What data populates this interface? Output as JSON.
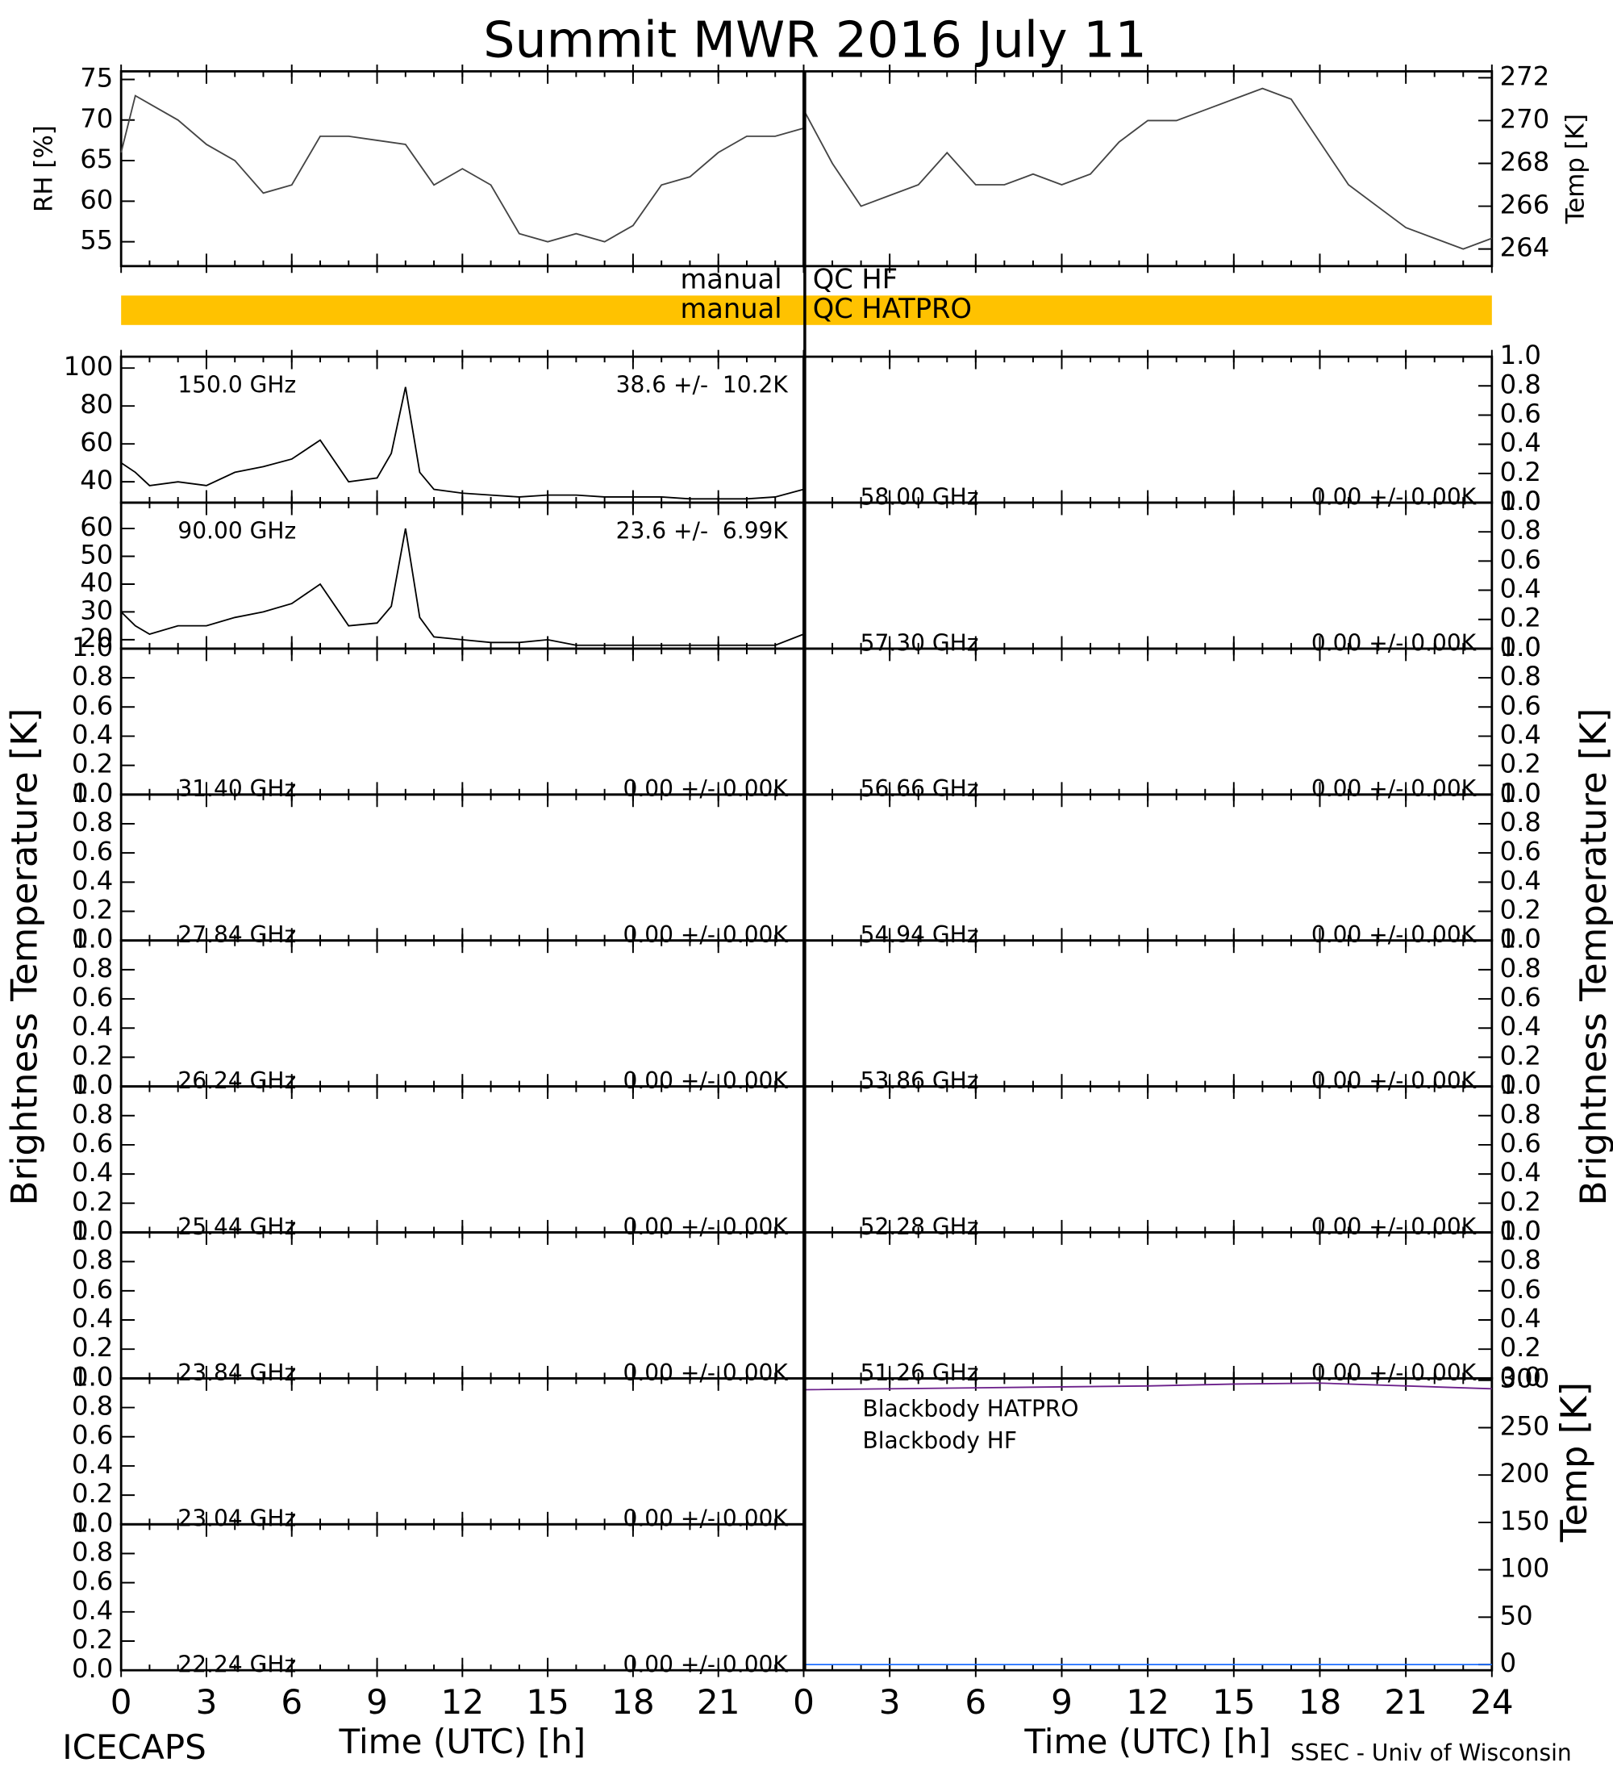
{
  "title": "Summit MWR 2016 July 11",
  "footer_left": "ICECAPS",
  "footer_right": "SSEC - Univ of Wisconsin",
  "ylabel_left": "Brightness Temperature [K]",
  "ylabel_right": "Brightness Temperature [K]",
  "qc": [
    {
      "left": "manual",
      "right": "QC HF"
    },
    {
      "left": "manual",
      "right": "QC HATPRO",
      "color": "#ffc200"
    }
  ],
  "chart_data": [
    {
      "type": "line",
      "ylabel": "RH [%]",
      "color": "#444444",
      "xlim": [
        0,
        24
      ],
      "xticks": [
        0,
        3,
        6,
        9,
        12,
        15,
        18,
        21
      ],
      "ylim": [
        52,
        76
      ],
      "yticks": [
        55,
        60,
        65,
        70,
        75
      ],
      "x": [
        0,
        0.5,
        1,
        2,
        3,
        4,
        5,
        6,
        7,
        8,
        9,
        10,
        11,
        12,
        13,
        14,
        15,
        16,
        17,
        18,
        19,
        20,
        21,
        22,
        23,
        24
      ],
      "values": [
        66,
        73,
        72,
        70,
        67,
        65,
        61,
        62,
        68,
        68,
        67.5,
        67,
        62,
        64,
        62,
        56,
        55,
        56,
        55,
        57,
        62,
        63,
        66,
        68,
        68,
        69
      ]
    },
    {
      "type": "line",
      "ylabel": "Temp [K]",
      "color": "#444444",
      "xlim": [
        0,
        24
      ],
      "xticks": [
        0,
        3,
        6,
        9,
        12,
        15,
        18,
        21,
        24
      ],
      "ylim": [
        263.2,
        272.3
      ],
      "yticks": [
        264,
        266,
        268,
        270,
        272
      ],
      "x": [
        0,
        1,
        2,
        3,
        4,
        5,
        6,
        7,
        8,
        9,
        10,
        11,
        12,
        13,
        14,
        15,
        16,
        17,
        18,
        19,
        20,
        21,
        22,
        23,
        24
      ],
      "values": [
        270.5,
        268,
        266,
        266.5,
        267,
        268.5,
        267,
        267,
        267.5,
        267,
        267.5,
        269,
        270,
        270,
        270.5,
        271,
        271.5,
        271,
        269,
        267,
        266,
        265,
        264.5,
        264,
        264.5
      ]
    },
    {
      "type": "line",
      "label": "150.0 GHz",
      "stats": "38.6 +/-  10.2K",
      "color": "#000000",
      "xlim": [
        0,
        24
      ],
      "xticks": [
        0,
        3,
        6,
        9,
        12,
        15,
        18,
        21
      ],
      "ylim": [
        29,
        106
      ],
      "yticks": [
        40,
        60,
        80,
        100
      ],
      "x": [
        0,
        0.5,
        1,
        2,
        3,
        4,
        5,
        6,
        7,
        8,
        9,
        9.5,
        10,
        10.5,
        11,
        12,
        13,
        14,
        15,
        16,
        17,
        18,
        19,
        20,
        21,
        22,
        23,
        24
      ],
      "values": [
        50,
        45,
        38,
        40,
        38,
        45,
        48,
        52,
        62,
        40,
        42,
        55,
        90,
        45,
        36,
        34,
        33,
        32,
        33,
        33,
        32,
        32,
        32,
        31,
        31,
        31,
        32,
        36
      ]
    },
    {
      "type": "line",
      "label": "90.00 GHz",
      "stats": "23.6 +/-  6.99K",
      "color": "#000000",
      "xlim": [
        0,
        24
      ],
      "xticks": [
        0,
        3,
        6,
        9,
        12,
        15,
        18,
        21
      ],
      "ylim": [
        16.8,
        69.3
      ],
      "yticks": [
        20,
        30,
        40,
        50,
        60
      ],
      "x": [
        0,
        0.5,
        1,
        2,
        3,
        4,
        5,
        6,
        7,
        8,
        9,
        9.5,
        10,
        10.5,
        11,
        12,
        13,
        14,
        15,
        16,
        17,
        18,
        19,
        20,
        21,
        22,
        23,
        24
      ],
      "values": [
        30,
        25,
        22,
        25,
        25,
        28,
        30,
        33,
        40,
        25,
        26,
        32,
        60,
        28,
        21,
        20,
        19,
        19,
        20,
        18,
        18,
        18,
        18,
        18,
        18,
        18,
        18,
        22
      ]
    },
    {
      "type": "line",
      "label": "31.40 GHz",
      "stats": "0.00 +/- 0.00K",
      "xlim": [
        0,
        24
      ],
      "xticks": [
        0,
        3,
        6,
        9,
        12,
        15,
        18,
        21
      ],
      "ylim": [
        0,
        1
      ],
      "yticks": [
        {
          "value": 0,
          "label": "0.0"
        },
        0.2,
        0.4,
        0.6,
        0.8,
        {
          "value": 1,
          "label": "1.0"
        }
      ]
    },
    {
      "type": "line",
      "label": "27.84 GHz",
      "stats": "0.00 +/- 0.00K",
      "xlim": [
        0,
        24
      ],
      "xticks": [
        0,
        3,
        6,
        9,
        12,
        15,
        18,
        21
      ],
      "ylim": [
        0,
        1
      ],
      "yticks": [
        {
          "value": 0,
          "label": "0.0"
        },
        0.2,
        0.4,
        0.6,
        0.8,
        {
          "value": 1,
          "label": "1.0"
        }
      ]
    },
    {
      "type": "line",
      "label": "26.24 GHz",
      "stats": "0.00 +/- 0.00K",
      "xlim": [
        0,
        24
      ],
      "xticks": [
        0,
        3,
        6,
        9,
        12,
        15,
        18,
        21
      ],
      "ylim": [
        0,
        1
      ],
      "yticks": [
        {
          "value": 0,
          "label": "0.0"
        },
        0.2,
        0.4,
        0.6,
        0.8,
        {
          "value": 1,
          "label": "1.0"
        }
      ]
    },
    {
      "type": "line",
      "label": "25.44 GHz",
      "stats": "0.00 +/- 0.00K",
      "xlim": [
        0,
        24
      ],
      "xticks": [
        0,
        3,
        6,
        9,
        12,
        15,
        18,
        21
      ],
      "ylim": [
        0,
        1
      ],
      "yticks": [
        {
          "value": 0,
          "label": "0.0"
        },
        0.2,
        0.4,
        0.6,
        0.8,
        {
          "value": 1,
          "label": "1.0"
        }
      ]
    },
    {
      "type": "line",
      "label": "23.84 GHz",
      "stats": "0.00 +/- 0.00K",
      "xlim": [
        0,
        24
      ],
      "xticks": [
        0,
        3,
        6,
        9,
        12,
        15,
        18,
        21
      ],
      "ylim": [
        0,
        1
      ],
      "yticks": [
        {
          "value": 0,
          "label": "0.0"
        },
        0.2,
        0.4,
        0.6,
        0.8,
        {
          "value": 1,
          "label": "1.0"
        }
      ]
    },
    {
      "type": "line",
      "label": "23.04 GHz",
      "stats": "0.00 +/- 0.00K",
      "xlim": [
        0,
        24
      ],
      "xticks": [
        0,
        3,
        6,
        9,
        12,
        15,
        18,
        21
      ],
      "ylim": [
        0,
        1
      ],
      "yticks": [
        {
          "value": 0,
          "label": "0.0"
        },
        0.2,
        0.4,
        0.6,
        0.8,
        {
          "value": 1,
          "label": "1.0"
        }
      ]
    },
    {
      "type": "line",
      "label": "22.24 GHz",
      "stats": "0.00 +/- 0.00K",
      "xlabel": "Time (UTC) [h]",
      "xlim": [
        0,
        24
      ],
      "xticks": [
        0,
        3,
        6,
        9,
        12,
        15,
        18,
        21
      ],
      "ylim": [
        0,
        1
      ],
      "yticks": [
        {
          "value": 0,
          "label": "0.0"
        },
        0.2,
        0.4,
        0.6,
        0.8,
        {
          "value": 1,
          "label": "1.0"
        }
      ]
    },
    {
      "type": "line",
      "label": "58.00 GHz",
      "stats": "0.00 +/- 0.00K",
      "xlim": [
        0,
        24
      ],
      "xticks": [
        0,
        3,
        6,
        9,
        12,
        15,
        18,
        21,
        24
      ],
      "ylim": [
        0,
        1
      ],
      "yticks": [
        {
          "value": 0,
          "label": "0.0"
        },
        0.2,
        0.4,
        0.6,
        0.8,
        {
          "value": 1,
          "label": "1.0"
        }
      ]
    },
    {
      "type": "line",
      "label": "57.30 GHz",
      "stats": "0.00 +/- 0.00K",
      "xlim": [
        0,
        24
      ],
      "xticks": [
        0,
        3,
        6,
        9,
        12,
        15,
        18,
        21,
        24
      ],
      "ylim": [
        0,
        1
      ],
      "yticks": [
        {
          "value": 0,
          "label": "0.0"
        },
        0.2,
        0.4,
        0.6,
        0.8,
        {
          "value": 1,
          "label": "1.0"
        }
      ]
    },
    {
      "type": "line",
      "label": "56.66 GHz",
      "stats": "0.00 +/- 0.00K",
      "xlim": [
        0,
        24
      ],
      "xticks": [
        0,
        3,
        6,
        9,
        12,
        15,
        18,
        21,
        24
      ],
      "ylim": [
        0,
        1
      ],
      "yticks": [
        {
          "value": 0,
          "label": "0.0"
        },
        0.2,
        0.4,
        0.6,
        0.8,
        {
          "value": 1,
          "label": "1.0"
        }
      ]
    },
    {
      "type": "line",
      "label": "54.94 GHz",
      "stats": "0.00 +/- 0.00K",
      "xlim": [
        0,
        24
      ],
      "xticks": [
        0,
        3,
        6,
        9,
        12,
        15,
        18,
        21,
        24
      ],
      "ylim": [
        0,
        1
      ],
      "yticks": [
        {
          "value": 0,
          "label": "0.0"
        },
        0.2,
        0.4,
        0.6,
        0.8,
        {
          "value": 1,
          "label": "1.0"
        }
      ]
    },
    {
      "type": "line",
      "label": "53.86 GHz",
      "stats": "0.00 +/- 0.00K",
      "xlim": [
        0,
        24
      ],
      "xticks": [
        0,
        3,
        6,
        9,
        12,
        15,
        18,
        21,
        24
      ],
      "ylim": [
        0,
        1
      ],
      "yticks": [
        {
          "value": 0,
          "label": "0.0"
        },
        0.2,
        0.4,
        0.6,
        0.8,
        {
          "value": 1,
          "label": "1.0"
        }
      ]
    },
    {
      "type": "line",
      "label": "52.28 GHz",
      "stats": "0.00 +/- 0.00K",
      "xlim": [
        0,
        24
      ],
      "xticks": [
        0,
        3,
        6,
        9,
        12,
        15,
        18,
        21,
        24
      ],
      "ylim": [
        0,
        1
      ],
      "yticks": [
        {
          "value": 0,
          "label": "0.0"
        },
        0.2,
        0.4,
        0.6,
        0.8,
        {
          "value": 1,
          "label": "1.0"
        }
      ]
    },
    {
      "type": "line",
      "label": "51.26 GHz",
      "stats": "0.00 +/- 0.00K",
      "xlim": [
        0,
        24
      ],
      "xticks": [
        0,
        3,
        6,
        9,
        12,
        15,
        18,
        21,
        24
      ],
      "ylim": [
        0,
        1
      ],
      "yticks": [
        {
          "value": 0,
          "label": "0.0"
        },
        0.2,
        0.4,
        0.6,
        0.8,
        {
          "value": 1,
          "label": "1.0"
        }
      ]
    },
    {
      "type": "line",
      "ylabel": "Temp [K]",
      "xlabel": "Time (UTC) [h]",
      "xlim": [
        0,
        24
      ],
      "xticks": [
        0,
        3,
        6,
        9,
        12,
        15,
        18,
        21,
        24
      ],
      "ylim": [
        -6,
        302
      ],
      "yticks": [
        0,
        50,
        100,
        150,
        200,
        250,
        300
      ],
      "x": [
        0,
        6,
        12,
        15,
        18,
        24
      ],
      "series": [
        {
          "name": "Blackbody HATPRO",
          "color": "#1e6fff",
          "values": [
            0,
            0,
            0,
            0,
            0,
            0
          ]
        },
        {
          "name": "Blackbody HF",
          "color": "#6b1f8a",
          "values": [
            290,
            292,
            294,
            296,
            297,
            291
          ]
        }
      ]
    }
  ]
}
